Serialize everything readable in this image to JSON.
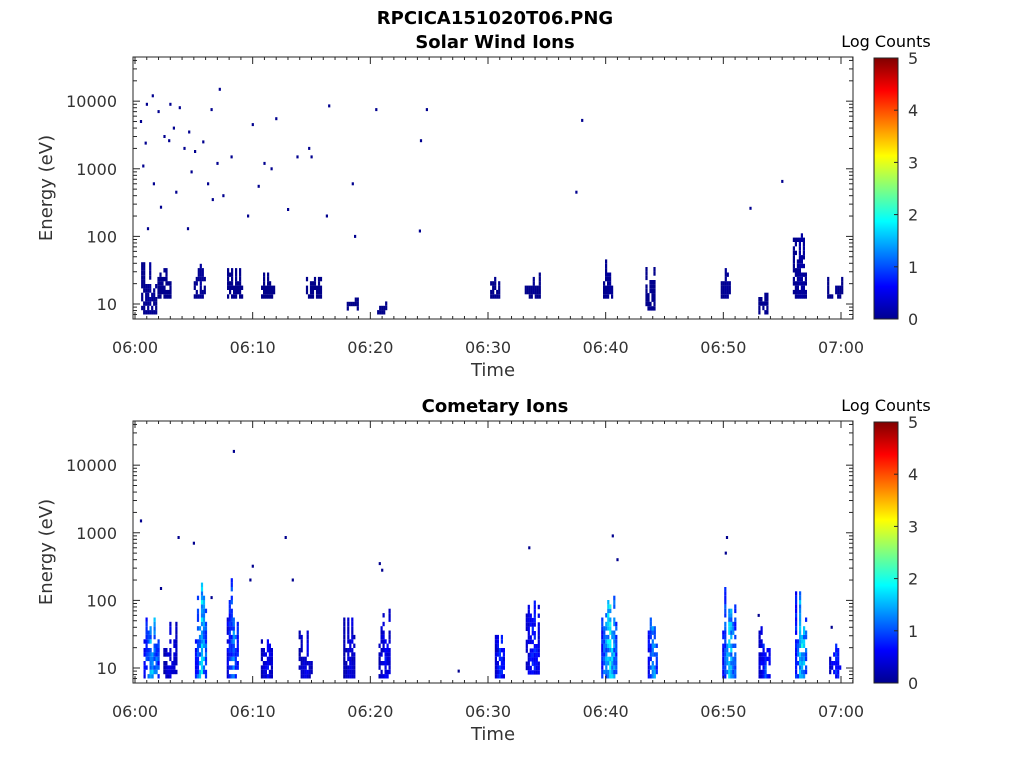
{
  "figure_title": "RPCICA151020T06.PNG",
  "chart_data": [
    {
      "type": "heatmap",
      "title": "Solar Wind Ions",
      "xlabel": "Time",
      "ylabel": "Energy (eV)",
      "x_ticks": [
        "06:00",
        "06:10",
        "06:20",
        "06:30",
        "06:40",
        "06:50",
        "07:00"
      ],
      "x_range_minutes": [
        0,
        61
      ],
      "y_scale": "log",
      "y_range": [
        6,
        45000
      ],
      "y_ticks": [
        10,
        100,
        1000,
        10000
      ],
      "y_tick_labels": [
        "10",
        "100",
        "1000",
        "10000"
      ],
      "colorbar": {
        "label": "Log Counts",
        "range": [
          0,
          5
        ],
        "ticks": [
          "0",
          "1",
          "2",
          "3",
          "4",
          "5"
        ],
        "colormap": "jet"
      },
      "grid": false,
      "bursts": [
        {
          "t": 1.2,
          "lo": 7,
          "hi": 45,
          "c": 0.15
        },
        {
          "t": 2.5,
          "lo": 12,
          "hi": 35,
          "c": 0.1
        },
        {
          "t": 5.5,
          "lo": 12,
          "hi": 40,
          "c": 0.15
        },
        {
          "t": 8.5,
          "lo": 12,
          "hi": 40,
          "c": 0.1
        },
        {
          "t": 11.3,
          "lo": 12,
          "hi": 30,
          "c": 0.05
        },
        {
          "t": 15.2,
          "lo": 12,
          "hi": 25,
          "c": 0.05
        },
        {
          "t": 18.5,
          "lo": 8,
          "hi": 15,
          "c": 0.05
        },
        {
          "t": 21.0,
          "lo": 7,
          "hi": 10,
          "c": 0.05
        },
        {
          "t": 30.6,
          "lo": 12,
          "hi": 28,
          "c": 0.1
        },
        {
          "t": 33.8,
          "lo": 12,
          "hi": 30,
          "c": 0.1
        },
        {
          "t": 40.2,
          "lo": 12,
          "hi": 45,
          "c": 0.15
        },
        {
          "t": 43.8,
          "lo": 8,
          "hi": 40,
          "c": 0.1
        },
        {
          "t": 50.2,
          "lo": 12,
          "hi": 35,
          "c": 0.15
        },
        {
          "t": 53.4,
          "lo": 7,
          "hi": 15,
          "c": 0.1
        },
        {
          "t": 56.5,
          "lo": 12,
          "hi": 150,
          "c": 0.2
        },
        {
          "t": 59.5,
          "lo": 12,
          "hi": 25,
          "c": 0.1
        }
      ],
      "scatter": [
        [
          0.5,
          5000
        ],
        [
          1.0,
          9000
        ],
        [
          1.5,
          12000
        ],
        [
          2.0,
          7000
        ],
        [
          2.5,
          3000
        ],
        [
          3.0,
          9000
        ],
        [
          3.3,
          4000
        ],
        [
          3.8,
          8000
        ],
        [
          4.2,
          2000
        ],
        [
          4.6,
          3500
        ],
        [
          5.1,
          1800
        ],
        [
          5.8,
          2500
        ],
        [
          6.5,
          7500
        ],
        [
          7.0,
          1200
        ],
        [
          8.2,
          1500
        ],
        [
          10.0,
          4500
        ],
        [
          11.0,
          1200
        ],
        [
          12.0,
          5500
        ],
        [
          14.8,
          2000
        ],
        [
          16.5,
          8500
        ],
        [
          18.5,
          600
        ],
        [
          20.5,
          7500
        ],
        [
          24.3,
          2600
        ],
        [
          24.8,
          7500
        ],
        [
          37.5,
          450
        ],
        [
          38.0,
          5200
        ],
        [
          52.3,
          260
        ],
        [
          55.0,
          650
        ],
        [
          0.7,
          1100
        ],
        [
          1.6,
          600
        ],
        [
          2.2,
          270
        ],
        [
          3.5,
          450
        ],
        [
          4.8,
          900
        ],
        [
          6.6,
          350
        ],
        [
          7.5,
          400
        ],
        [
          9.6,
          200
        ],
        [
          10.5,
          550
        ],
        [
          13.0,
          250
        ],
        [
          16.3,
          200
        ],
        [
          18.7,
          100
        ],
        [
          24.2,
          120
        ],
        [
          1.1,
          130
        ],
        [
          4.5,
          130
        ],
        [
          0.9,
          2400
        ],
        [
          2.9,
          2600
        ],
        [
          7.2,
          15000
        ],
        [
          15.0,
          1500
        ],
        [
          13.8,
          1500
        ],
        [
          6.2,
          600
        ],
        [
          11.6,
          1000
        ]
      ]
    },
    {
      "type": "heatmap",
      "title": "Cometary Ions",
      "xlabel": "Time",
      "ylabel": "Energy (eV)",
      "x_ticks": [
        "06:00",
        "06:10",
        "06:20",
        "06:30",
        "06:40",
        "06:50",
        "07:00"
      ],
      "x_range_minutes": [
        0,
        61
      ],
      "y_scale": "log",
      "y_range": [
        6,
        45000
      ],
      "y_ticks": [
        10,
        100,
        1000,
        10000
      ],
      "y_tick_labels": [
        "10",
        "100",
        "1000",
        "10000"
      ],
      "colorbar": {
        "label": "Log Counts",
        "range": [
          0,
          5
        ],
        "ticks": [
          "0",
          "1",
          "2",
          "3",
          "4",
          "5"
        ],
        "colormap": "jet"
      },
      "grid": false,
      "bursts": [
        {
          "t": 1.4,
          "lo": 7,
          "hi": 60,
          "c": 1.7
        },
        {
          "t": 3.0,
          "lo": 7,
          "hi": 45,
          "c": 0.6
        },
        {
          "t": 5.6,
          "lo": 7,
          "hi": 220,
          "c": 1.8
        },
        {
          "t": 8.3,
          "lo": 7,
          "hi": 300,
          "c": 1.3
        },
        {
          "t": 11.2,
          "lo": 7,
          "hi": 40,
          "c": 0.7
        },
        {
          "t": 14.5,
          "lo": 7,
          "hi": 35,
          "c": 0.6
        },
        {
          "t": 18.2,
          "lo": 7,
          "hi": 60,
          "c": 0.6
        },
        {
          "t": 21.2,
          "lo": 7,
          "hi": 90,
          "c": 0.7
        },
        {
          "t": 31.0,
          "lo": 7,
          "hi": 40,
          "c": 1.0
        },
        {
          "t": 33.8,
          "lo": 8,
          "hi": 100,
          "c": 0.9
        },
        {
          "t": 40.3,
          "lo": 7,
          "hi": 250,
          "c": 2.0
        },
        {
          "t": 44.0,
          "lo": 7,
          "hi": 80,
          "c": 1.6
        },
        {
          "t": 50.5,
          "lo": 7,
          "hi": 180,
          "c": 1.8
        },
        {
          "t": 53.5,
          "lo": 7,
          "hi": 40,
          "c": 1.0
        },
        {
          "t": 56.6,
          "lo": 7,
          "hi": 200,
          "c": 1.9
        },
        {
          "t": 59.5,
          "lo": 7,
          "hi": 30,
          "c": 0.9
        }
      ],
      "scatter": [
        [
          0.5,
          1500
        ],
        [
          3.7,
          850
        ],
        [
          5.0,
          700
        ],
        [
          8.4,
          16000
        ],
        [
          10.0,
          320
        ],
        [
          12.8,
          850
        ],
        [
          20.8,
          350
        ],
        [
          33.5,
          600
        ],
        [
          40.6,
          900
        ],
        [
          50.3,
          850
        ],
        [
          50.2,
          500
        ],
        [
          2.2,
          150
        ],
        [
          6.5,
          110
        ],
        [
          9.8,
          200
        ],
        [
          13.4,
          200
        ],
        [
          21.0,
          280
        ],
        [
          41.0,
          400
        ],
        [
          53.0,
          60
        ],
        [
          59.2,
          40
        ],
        [
          27.5,
          9
        ]
      ]
    }
  ]
}
